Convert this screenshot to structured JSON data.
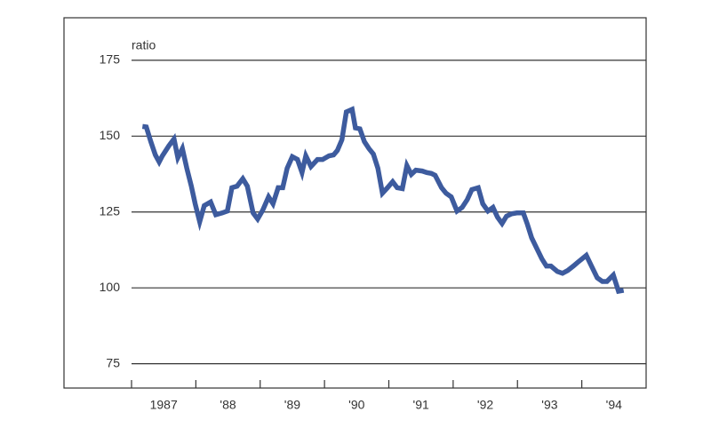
{
  "chart_data": {
    "type": "line",
    "y_label": "ratio",
    "x": [
      1987.17,
      1987.23,
      1987.3,
      1987.37,
      1987.43,
      1987.48,
      1987.58,
      1987.66,
      1987.72,
      1987.79,
      1987.86,
      1987.93,
      1987.99,
      1988.06,
      1988.13,
      1988.23,
      1988.31,
      1988.41,
      1988.49,
      1988.56,
      1988.64,
      1988.73,
      1988.8,
      1988.89,
      1988.96,
      1989.04,
      1989.13,
      1989.2,
      1989.28,
      1989.35,
      1989.42,
      1989.5,
      1989.58,
      1989.65,
      1989.71,
      1989.79,
      1989.89,
      1989.97,
      1990.07,
      1990.14,
      1990.2,
      1990.27,
      1990.34,
      1990.43,
      1990.48,
      1990.55,
      1990.62,
      1990.69,
      1990.76,
      1990.83,
      1990.9,
      1990.98,
      1991.06,
      1991.13,
      1991.21,
      1991.28,
      1991.35,
      1991.42,
      1991.52,
      1991.59,
      1991.66,
      1991.72,
      1991.82,
      1991.89,
      1991.97,
      1992.06,
      1992.14,
      1992.22,
      1992.29,
      1992.39,
      1992.46,
      1992.54,
      1992.62,
      1992.69,
      1992.76,
      1992.83,
      1992.91,
      1992.99,
      1993.09,
      1993.15,
      1993.22,
      1993.3,
      1993.38,
      1993.45,
      1993.52,
      1993.62,
      1993.7,
      1993.78,
      1993.87,
      1993.93,
      1994.0,
      1994.07,
      1994.15,
      1994.24,
      1994.32,
      1994.39,
      1994.49,
      1994.57,
      1994.65
    ],
    "series": [
      {
        "color": "#3d5b9e",
        "values": [
          153.2,
          153,
          148.2,
          143.8,
          141.5,
          143.5,
          146.8,
          149.1,
          142.9,
          145.9,
          139.4,
          133.5,
          127.7,
          121.8,
          127.1,
          128.3,
          124.1,
          124.7,
          125.3,
          133,
          133.5,
          136,
          133.5,
          124.7,
          122.7,
          125.6,
          130,
          127.7,
          133,
          133,
          139.4,
          143.2,
          142.3,
          138,
          143.5,
          140,
          142.3,
          142.3,
          143.5,
          143.8,
          145.3,
          148.8,
          158,
          158.8,
          152.7,
          152.4,
          148.2,
          145.9,
          144.1,
          139.4,
          131.2,
          133,
          135,
          133,
          132.7,
          140.3,
          137.4,
          138.8,
          138.5,
          138,
          137.7,
          137.1,
          133,
          131.2,
          130,
          125.3,
          126.5,
          129.1,
          132.4,
          133,
          127.7,
          125.3,
          126.5,
          123.3,
          121.2,
          123.6,
          124.4,
          124.7,
          124.7,
          121.2,
          116.5,
          113,
          109.5,
          107.2,
          107.2,
          105.4,
          104.8,
          105.7,
          107.2,
          108.3,
          109.5,
          110.7,
          107.2,
          103.3,
          102.1,
          102.1,
          104.2,
          98.9,
          99.2
        ]
      }
    ],
    "xlim": [
      1985.95,
      1995
    ],
    "xticks": [
      {
        "value": 1987,
        "label": "1987"
      },
      {
        "value": 1988,
        "label": "'88"
      },
      {
        "value": 1989,
        "label": "'89"
      },
      {
        "value": 1990,
        "label": "'90"
      },
      {
        "value": 1991,
        "label": "'91"
      },
      {
        "value": 1992,
        "label": "'92"
      },
      {
        "value": 1993,
        "label": "'93"
      },
      {
        "value": 1994,
        "label": "'94"
      }
    ],
    "ylim": [
      67,
      189
    ],
    "yticks": [
      75,
      100,
      125,
      150,
      175
    ],
    "grid": true
  }
}
